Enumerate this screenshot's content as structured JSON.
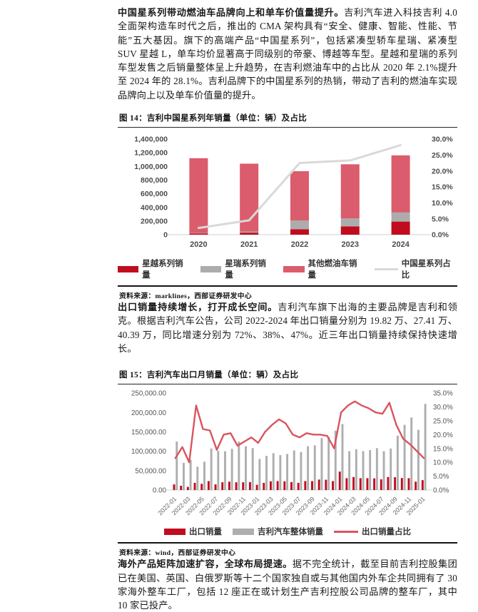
{
  "paragraphs": [
    {
      "lead": "中国星系列带动燃油车品牌向上和单车价值量提升。",
      "body": "吉利汽车进入科技吉利 4.0 全面架构造车时代之后，推出的 CMA 架构具有“安全、健康、智能、性能、节能”五大基因。旗下的高端产品“中国星系列”，包括紧凑型轿车星瑞、紧凑型 SUV 星越 L，单车均价显著高于同级别的帝豪、博越等车型。星越和星瑞的系列车型发售之后销量整体呈上升趋势，在吉利燃油车中的占比从 2020 年 2.1%提升至 2024 年的 28.1%。吉利品牌下的中国星系列的热销，带动了吉利的燃油车实现品牌向上以及单车价值量的提升。"
    },
    {
      "lead": "出口销量持续增长，打开成长空间。",
      "body": "吉利汽车旗下出海的主要品牌是吉利和领克。根据吉利汽车公告，公司 2022-2024 年出口销量分别为 19.82 万、27.41 万、40.39 万，同比增速分别为 72%、38%、47%。近三年出口销量持续保持快速增长。"
    },
    {
      "lead": "海外产品矩阵加速扩容，全球布局提速。",
      "body": "据不完全统计，截至目前吉利控股集团已在美国、英国、白俄罗斯等十二个国家独自或与其他国内外车企共同拥有了 30 家海外整车工厂，包括 12 座正在或计划生产吉利控股公司品牌的整车厂，其中 10 家已投产。"
    }
  ],
  "figures": [
    {
      "title": "图 14：吉利中国星系列年销量（单位：辆）及占比",
      "source": "资料来源：marklines，西部证券研发中心"
    },
    {
      "title": "图 15：吉利汽车出口月销量（单位：辆）及占比",
      "source": "资料来源：wind，西部证券研发中心"
    }
  ],
  "chart_data": [
    {
      "type": "bar+line",
      "title": "吉利中国星系列年销量（单位：辆）及占比",
      "categories": [
        "2020",
        "2021",
        "2022",
        "2023",
        "2024"
      ],
      "series": [
        {
          "name": "星越系列销量",
          "type": "bar",
          "stack": true,
          "color": "#c00c1e",
          "values": [
            18000,
            30000,
            80000,
            120000,
            192000
          ]
        },
        {
          "name": "星瑞系列销量",
          "type": "bar",
          "stack": true,
          "color": "#acacac",
          "values": [
            5500,
            17000,
            128000,
            118000,
            133000
          ]
        },
        {
          "name": "其他燃油车销量",
          "type": "bar",
          "stack": true,
          "color": "#db5c6c",
          "values": [
            1096500,
            993000,
            722000,
            793000,
            837000
          ]
        },
        {
          "name": "中国星系列占比",
          "type": "line",
          "axis": "right",
          "color": "#d9d9d9",
          "values": [
            2.1,
            4.5,
            22.5,
            23.3,
            28.1
          ]
        }
      ],
      "left_axis": {
        "min": 0,
        "max": 1400000,
        "labels": [
          "1,400,000",
          "1,200,000",
          "1,000,000",
          "800,000",
          "600,000",
          "400,000",
          "200,000",
          "0"
        ]
      },
      "right_axis": {
        "min": 0,
        "max": 30,
        "labels": [
          "30.0%",
          "25.0%",
          "20.0%",
          "15.0%",
          "10.0%",
          "5.0%",
          "0.0%"
        ]
      },
      "grid": false,
      "legend_position": "bottom"
    },
    {
      "type": "bar+line",
      "title": "吉利汽车出口月销量（单位：辆）及占比",
      "categories": [
        "2022-01",
        "2022-02",
        "2022-03",
        "2022-04",
        "2022-05",
        "2022-06",
        "2022-07",
        "2022-08",
        "2022-09",
        "2022-10",
        "2022-11",
        "2022-12",
        "2023-01",
        "2023-02",
        "2023-03",
        "2023-04",
        "2023-05",
        "2023-06",
        "2023-07",
        "2023-08",
        "2023-09",
        "2023-10",
        "2023-11",
        "2023-12",
        "2024-01",
        "2024-02",
        "2024-03",
        "2024-04",
        "2024-05",
        "2024-06",
        "2024-07",
        "2024-08",
        "2024-09",
        "2024-10",
        "2024-11",
        "2024-12",
        "2025-01"
      ],
      "x_tick_every": 2,
      "series": [
        {
          "name": "出口销量",
          "type": "bar",
          "color": "#c00c1e",
          "values": [
            14500,
            11000,
            8000,
            18500,
            16000,
            23000,
            14500,
            20000,
            21500,
            20000,
            20000,
            20500,
            13500,
            18500,
            22500,
            23000,
            22500,
            20500,
            18500,
            23000,
            23000,
            27000,
            26500,
            23000,
            47500,
            30500,
            33500,
            30500,
            30500,
            30000,
            27500,
            33500,
            33000,
            31000,
            30500,
            21500,
            25500
          ]
        },
        {
          "name": "吉利汽车整体销量",
          "type": "bar",
          "color": "#aeaeae",
          "values": [
            125000,
            70000,
            78000,
            60000,
            73000,
            107000,
            101000,
            100000,
            106000,
            125000,
            113000,
            108000,
            80000,
            88000,
            95000,
            90000,
            93000,
            102000,
            98000,
            113000,
            115000,
            134000,
            137000,
            153000,
            170000,
            100000,
            105000,
            100000,
            103000,
            108000,
            100000,
            107000,
            140000,
            168000,
            187000,
            155000,
            222000
          ]
        },
        {
          "name": "出口销量占比",
          "type": "line",
          "axis": "right",
          "color": "#d9545e",
          "values": [
            11.5,
            15.5,
            10.0,
            30.5,
            22.0,
            21.5,
            14.5,
            20.0,
            20.5,
            16.0,
            17.5,
            19.0,
            17.0,
            21.0,
            23.5,
            25.5,
            24.0,
            20.0,
            19.0,
            20.5,
            20.0,
            20.0,
            19.5,
            15.0,
            28.0,
            30.5,
            32.0,
            30.5,
            29.5,
            28.0,
            27.5,
            31.5,
            23.5,
            18.5,
            16.5,
            14.0,
            11.5
          ]
        }
      ],
      "left_axis": {
        "min": 0,
        "max": 250000,
        "labels": [
          "250,000.00",
          "200,000.00",
          "150,000.00",
          "100,000.00",
          "50,000.00",
          "0.00"
        ]
      },
      "right_axis": {
        "min": 0,
        "max": 35,
        "labels": [
          "35.0%",
          "30.0%",
          "25.0%",
          "20.0%",
          "15.0%",
          "10.0%",
          "5.0%",
          "0.0%"
        ]
      },
      "grid": false,
      "legend_position": "bottom"
    }
  ]
}
